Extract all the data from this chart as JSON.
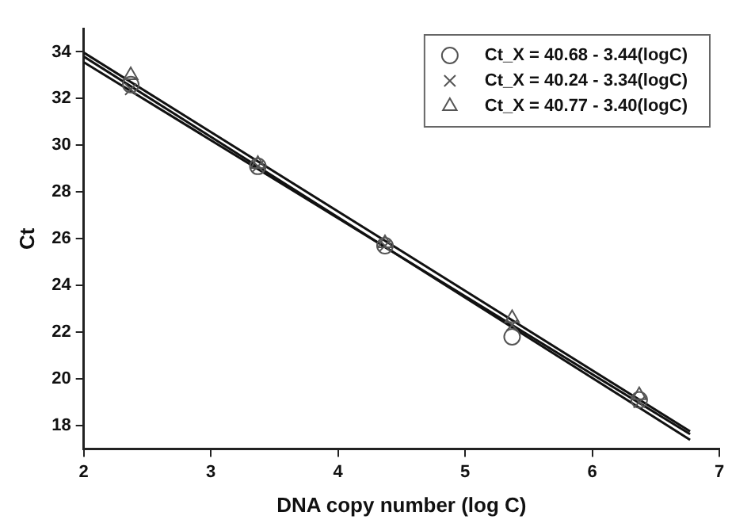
{
  "chart_data": {
    "type": "scatter",
    "xlabel": "DNA copy number (log C)",
    "ylabel": "Ct",
    "xlim": [
      2,
      7
    ],
    "xticks": [
      2,
      3,
      4,
      5,
      6,
      7
    ],
    "ylim": [
      17,
      35
    ],
    "yticks": [
      18,
      20,
      22,
      24,
      26,
      28,
      30,
      32,
      34
    ],
    "grid": false,
    "legend": "top right",
    "series": [
      {
        "name": "Ct_X = 40.68 - 3.44(logC)",
        "marker": "circle",
        "color": "#555555",
        "x": [
          2.37,
          3.37,
          4.37,
          5.37,
          6.37
        ],
        "values": [
          32.6,
          29.1,
          25.7,
          21.8,
          19.1
        ]
      },
      {
        "name": "Ct_X = 40.24 - 3.34(logC)",
        "marker": "cross",
        "color": "#555555",
        "x": [
          2.37,
          3.37,
          4.37,
          5.37,
          6.37
        ],
        "values": [
          32.4,
          29.1,
          25.7,
          22.3,
          19.0
        ]
      },
      {
        "name": "Ct_X = 40.77 - 3.40(logC)",
        "marker": "triangle",
        "color": "#555555",
        "x": [
          2.37,
          3.37,
          4.37,
          5.37,
          6.37
        ],
        "values": [
          33.0,
          29.2,
          25.8,
          22.6,
          19.3
        ]
      },
      {
        "type": "line",
        "marker": "none",
        "color": "#111111",
        "x": [
          2,
          6.77
        ],
        "values": [
          33.8,
          17.39
        ]
      },
      {
        "type": "line",
        "marker": "none",
        "color": "#111111",
        "x": [
          2,
          6.77
        ],
        "values": [
          33.56,
          17.63
        ]
      },
      {
        "type": "line",
        "marker": "none",
        "color": "#111111",
        "x": [
          2,
          6.77
        ],
        "values": [
          33.97,
          17.75
        ]
      }
    ]
  }
}
